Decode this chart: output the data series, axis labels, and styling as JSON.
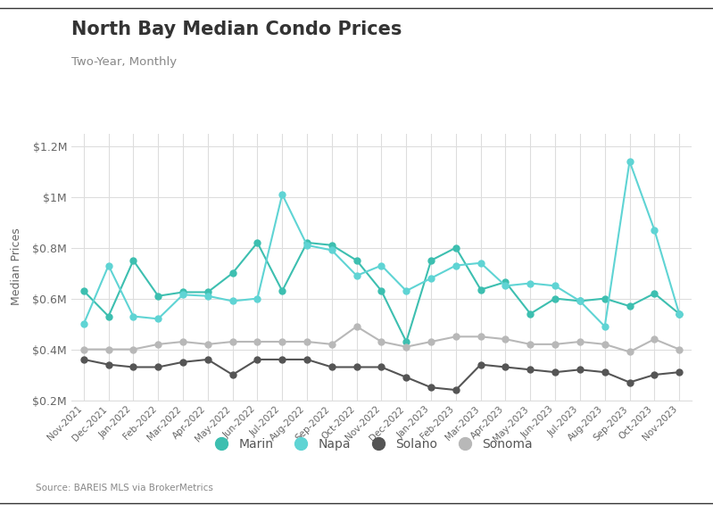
{
  "title": "North Bay Median Condo Prices",
  "subtitle": "Two-Year, Monthly",
  "ylabel": "Median Prices",
  "source": "Source: BAREIS MLS via BrokerMetrics",
  "background_color": "#ffffff",
  "ylim": [
    200000,
    1250000
  ],
  "yticks": [
    200000,
    400000,
    600000,
    800000,
    1000000,
    1200000
  ],
  "ytick_labels": [
    "$0.2M",
    "$0.4M",
    "$0.6M",
    "$0.8M",
    "$1M",
    "$1.2M"
  ],
  "months": [
    "Nov-2021",
    "Dec-2021",
    "Jan-2022",
    "Feb-2022",
    "Mar-2022",
    "Apr-2022",
    "May-2022",
    "Jun-2022",
    "Jul-2022",
    "Aug-2022",
    "Sep-2022",
    "Oct-2022",
    "Nov-2022",
    "Dec-2022",
    "Jan-2023",
    "Feb-2023",
    "Mar-2023",
    "Apr-2023",
    "May-2023",
    "Jun-2023",
    "Jul-2023",
    "Aug-2023",
    "Sep-2023",
    "Oct-2023",
    "Nov-2023"
  ],
  "series": {
    "Marin": {
      "color": "#3dbfb0",
      "linestyle": "-",
      "values": [
        630000,
        530000,
        750000,
        610000,
        625000,
        625000,
        700000,
        820000,
        630000,
        820000,
        810000,
        750000,
        630000,
        430000,
        750000,
        800000,
        635000,
        665000,
        540000,
        600000,
        590000,
        600000,
        570000,
        620000,
        540000
      ]
    },
    "Napa": {
      "color": "#5fd4d4",
      "linestyle": "-",
      "values": [
        500000,
        730000,
        530000,
        520000,
        615000,
        610000,
        590000,
        600000,
        1010000,
        810000,
        790000,
        690000,
        730000,
        630000,
        680000,
        730000,
        740000,
        650000,
        660000,
        650000,
        590000,
        490000,
        1140000,
        870000,
        540000
      ]
    },
    "Solano": {
      "color": "#555555",
      "linestyle": "-",
      "values": [
        360000,
        340000,
        330000,
        330000,
        350000,
        360000,
        300000,
        360000,
        360000,
        360000,
        330000,
        330000,
        330000,
        290000,
        250000,
        240000,
        340000,
        330000,
        320000,
        310000,
        320000,
        310000,
        270000,
        300000,
        310000
      ]
    },
    "Sonoma": {
      "color": "#b8b8b8",
      "linestyle": "-",
      "values": [
        400000,
        400000,
        400000,
        420000,
        430000,
        420000,
        430000,
        430000,
        430000,
        430000,
        420000,
        490000,
        430000,
        410000,
        430000,
        450000,
        450000,
        440000,
        420000,
        420000,
        430000,
        420000,
        390000,
        440000,
        400000
      ]
    }
  }
}
